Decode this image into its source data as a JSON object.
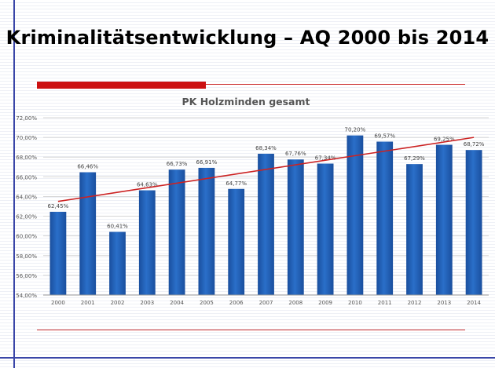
{
  "slide": {
    "title": "Kriminalitätsentwicklung – AQ 2000 bis 2014"
  },
  "colors": {
    "bar": "#2a6fc9",
    "bar_dark": "#1a4f9e",
    "trend": "#cc2222",
    "accent": "#cc1111",
    "frame": "#3a46a8"
  },
  "chart_data": {
    "type": "bar",
    "title": "PK Holzminden gesamt",
    "categories": [
      "2000",
      "2001",
      "2002",
      "2003",
      "2004",
      "2005",
      "2006",
      "2007",
      "2008",
      "2009",
      "2010",
      "2011",
      "2012",
      "2013",
      "2014"
    ],
    "values": [
      62.45,
      66.46,
      60.41,
      64.63,
      66.73,
      66.91,
      64.77,
      68.34,
      67.76,
      67.34,
      70.2,
      69.57,
      67.29,
      69.25,
      68.72
    ],
    "data_labels": [
      "62,45%",
      "66,46%",
      "60,41%",
      "64,63%",
      "66,73%",
      "66,91%",
      "64,77%",
      "68,34%",
      "67,76%",
      "67,34%",
      "70,20%",
      "69,57%",
      "67,29%",
      "69,25%",
      "68,72%"
    ],
    "yticks": [
      54,
      56,
      58,
      60,
      62,
      64,
      66,
      68,
      70,
      72
    ],
    "ytick_labels": [
      "54,00%",
      "56,00%",
      "58,00%",
      "60,00%",
      "62,00%",
      "64,00%",
      "66,00%",
      "68,00%",
      "70,00%",
      "72,00%"
    ],
    "ylim": [
      54,
      72
    ],
    "grid": true,
    "trendline": {
      "type": "linear",
      "start": 63.5,
      "end": 70.0
    }
  }
}
